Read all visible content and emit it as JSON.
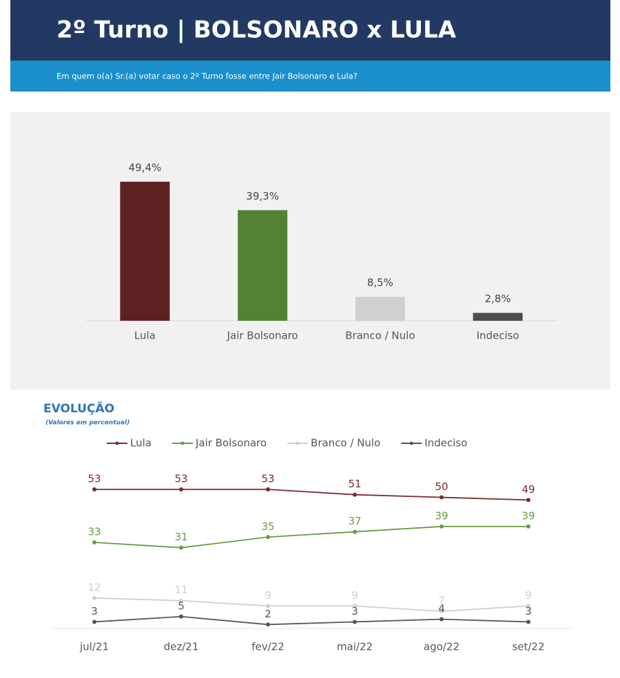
{
  "header": {
    "title": "2º Turno | BOLSONARO x LULA",
    "subtitle": "Em quem o(a) Sr.(a) votar caso o 2º Turno fosse entre Jair Bolsonaro e Lula?"
  },
  "chart_data": [
    {
      "type": "bar",
      "categories": [
        "Lula",
        "Jair Bolsonaro",
        "Branco / Nulo",
        "Indeciso"
      ],
      "values": [
        49.4,
        39.3,
        8.5,
        2.8
      ],
      "value_labels": [
        "49,4%",
        "39,3%",
        "8,5%",
        "2,8%"
      ],
      "colors": [
        "#5e2122",
        "#548235",
        "#d0d0d0",
        "#4d4d4d"
      ]
    },
    {
      "type": "line",
      "title": "EVOLUÇÃO",
      "subtitle": "(Valores em percentual)",
      "categories": [
        "jul/21",
        "dez/21",
        "fev/22",
        "mai/22",
        "ago/22",
        "set/22"
      ],
      "series": [
        {
          "name": "Lula",
          "color": "#7b2a2d",
          "values": [
            53,
            53,
            53,
            51,
            50,
            49
          ]
        },
        {
          "name": "Jair Bolsonaro",
          "color": "#6a9a45",
          "values": [
            33,
            31,
            35,
            37,
            39,
            39
          ]
        },
        {
          "name": "Branco / Nulo",
          "color": "#cfcfcf",
          "values": [
            12,
            11,
            9,
            9,
            7,
            9
          ]
        },
        {
          "name": "Indeciso",
          "color": "#555555",
          "values": [
            3,
            5,
            2,
            3,
            4,
            3
          ]
        }
      ]
    }
  ]
}
